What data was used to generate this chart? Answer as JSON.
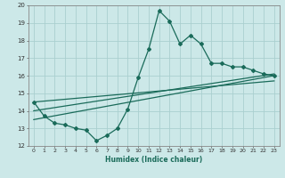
{
  "title": "",
  "xlabel": "Humidex (Indice chaleur)",
  "ylabel": "",
  "xlim": [
    -0.5,
    23.5
  ],
  "ylim": [
    12,
    20
  ],
  "xticks": [
    0,
    1,
    2,
    3,
    4,
    5,
    6,
    7,
    8,
    9,
    10,
    11,
    12,
    13,
    14,
    15,
    16,
    17,
    18,
    19,
    20,
    21,
    22,
    23
  ],
  "yticks": [
    12,
    13,
    14,
    15,
    16,
    17,
    18,
    19,
    20
  ],
  "bg_color": "#cce8e8",
  "line_color": "#1a6b5a",
  "grid_color": "#aacfcf",
  "curve1_x": [
    0,
    1,
    2,
    3,
    4,
    5,
    6,
    7,
    8,
    9,
    10,
    11,
    12,
    13,
    14,
    15,
    16,
    17,
    18,
    19,
    20,
    21,
    22,
    23
  ],
  "curve1_y": [
    14.5,
    13.7,
    13.3,
    13.2,
    13.0,
    12.9,
    12.3,
    12.6,
    13.0,
    14.1,
    15.9,
    17.5,
    19.7,
    19.1,
    17.8,
    18.3,
    17.8,
    16.7,
    16.7,
    16.5,
    16.5,
    16.3,
    16.1,
    16.0
  ],
  "line2_x": [
    0,
    23
  ],
  "line2_y": [
    13.5,
    16.0
  ],
  "line3_x": [
    0,
    23
  ],
  "line3_y": [
    14.0,
    16.1
  ],
  "line4_x": [
    0,
    23
  ],
  "line4_y": [
    14.5,
    15.7
  ]
}
